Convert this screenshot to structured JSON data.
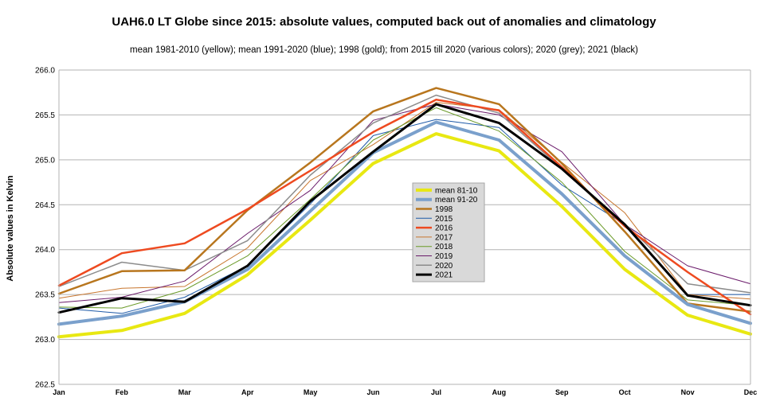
{
  "chart_data": {
    "type": "line",
    "title": "UAH6.0 LT Globe since 2015: absolute values, computed back out of anomalies and climatology",
    "subtitle": "mean 1981-2010 (yellow); mean 1991-2020 (blue); 1998 (gold); from 2015 till 2020 (various colors); 2020 (grey); 2021 (black)",
    "ylabel": "Absolute values in Kelvin",
    "xlabel": "",
    "categories": [
      "Jan",
      "Feb",
      "Mar",
      "Apr",
      "May",
      "Jun",
      "Jul",
      "Aug",
      "Sep",
      "Oct",
      "Nov",
      "Dec"
    ],
    "ylim": [
      262.5,
      266.0
    ],
    "yticks": [
      "262.5",
      "263.0",
      "263.5",
      "264.0",
      "264.5",
      "265.0",
      "265.5",
      "266.0"
    ],
    "grid": true,
    "legend_position": "center",
    "series": [
      {
        "name": "mean 81-10",
        "color": "#e8e812",
        "width": 4,
        "values": [
          263.03,
          263.1,
          263.29,
          263.72,
          264.33,
          264.96,
          265.29,
          265.1,
          264.48,
          263.78,
          263.27,
          263.06
        ]
      },
      {
        "name": "mean 91-20",
        "color": "#7aa0cc",
        "width": 4,
        "values": [
          263.17,
          263.26,
          263.42,
          263.78,
          264.43,
          265.08,
          265.42,
          265.22,
          264.62,
          263.93,
          263.39,
          263.18
        ]
      },
      {
        "name": "1998",
        "color": "#b8761e",
        "width": 2.5,
        "values": [
          263.51,
          263.76,
          263.77,
          264.44,
          264.97,
          265.54,
          265.8,
          265.62,
          264.96,
          264.2,
          263.4,
          263.31
        ]
      },
      {
        "name": "2015",
        "color": "#1e5aa8",
        "width": 1,
        "values": [
          263.35,
          263.29,
          263.47,
          263.82,
          264.51,
          265.27,
          265.45,
          265.36,
          264.72,
          264.28,
          263.5,
          263.5
        ]
      },
      {
        "name": "2016",
        "color": "#ee4a20",
        "width": 2.5,
        "values": [
          263.6,
          263.96,
          264.07,
          264.45,
          264.88,
          265.31,
          265.67,
          265.55,
          264.92,
          264.26,
          263.75,
          263.28
        ]
      },
      {
        "name": "2017",
        "color": "#c8762e",
        "width": 1,
        "values": [
          263.46,
          263.57,
          263.59,
          264.02,
          264.77,
          265.17,
          265.64,
          265.56,
          264.97,
          264.41,
          263.5,
          263.45
        ]
      },
      {
        "name": "2018",
        "color": "#6a9a28",
        "width": 1,
        "values": [
          263.36,
          263.35,
          263.55,
          263.93,
          264.56,
          265.22,
          265.58,
          265.32,
          264.75,
          263.98,
          263.44,
          263.38
        ]
      },
      {
        "name": "2019",
        "color": "#6a1a6a",
        "width": 1,
        "values": [
          263.41,
          263.47,
          263.65,
          264.18,
          264.66,
          265.44,
          265.62,
          265.5,
          265.09,
          264.28,
          263.82,
          263.62
        ]
      },
      {
        "name": "2020",
        "color": "#8c8c8c",
        "width": 1.5,
        "values": [
          263.59,
          263.86,
          263.77,
          264.1,
          264.83,
          265.41,
          265.72,
          265.52,
          264.9,
          264.29,
          263.62,
          263.52
        ]
      },
      {
        "name": "2021",
        "color": "#000000",
        "width": 3,
        "values": [
          263.3,
          263.46,
          263.42,
          263.82,
          264.54,
          265.09,
          265.62,
          265.41,
          264.9,
          264.28,
          263.49,
          263.38
        ]
      }
    ]
  }
}
